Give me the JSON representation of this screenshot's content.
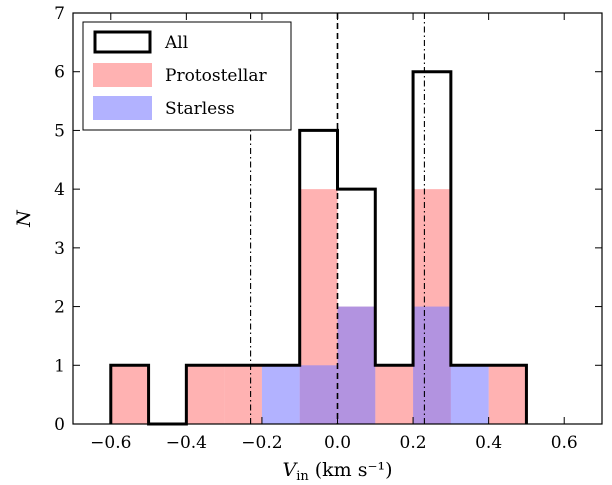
{
  "chart_data": {
    "type": "histogram",
    "xlabel": {
      "symbol": "V",
      "subscript": "in",
      "unit": "(km s⁻¹)"
    },
    "ylabel": "N",
    "xlim": [
      -0.7,
      0.7
    ],
    "ylim": [
      0,
      7
    ],
    "xticks": [
      -0.6,
      -0.4,
      -0.2,
      0.0,
      0.2,
      0.4,
      0.6
    ],
    "xtick_labels": [
      "−0.6",
      "−0.4",
      "−0.2",
      "0.0",
      "0.2",
      "0.4",
      "0.6"
    ],
    "yticks": [
      0,
      1,
      2,
      3,
      4,
      5,
      6,
      7
    ],
    "ytick_labels": [
      "0",
      "1",
      "2",
      "3",
      "4",
      "5",
      "6",
      "7"
    ],
    "bin_edges": [
      -0.6,
      -0.5,
      -0.4,
      -0.3,
      -0.2,
      -0.1,
      0.0,
      0.1,
      0.2,
      0.3,
      0.4,
      0.5
    ],
    "series": [
      {
        "name": "All",
        "style": "step",
        "color": "#000000",
        "counts": [
          1,
          0,
          1,
          1,
          1,
          5,
          4,
          1,
          6,
          1,
          1
        ]
      },
      {
        "name": "Protostellar",
        "style": "fill",
        "color": "#ff7f7f",
        "counts": [
          1,
          0,
          1,
          1,
          0,
          4,
          2,
          1,
          4,
          0,
          1
        ]
      },
      {
        "name": "Starless",
        "style": "fill",
        "color": "#7f7fff",
        "counts": [
          0,
          0,
          0,
          0,
          1,
          1,
          2,
          0,
          2,
          1,
          0
        ]
      }
    ],
    "vlines": [
      {
        "x": 0.0,
        "style": "dashed"
      },
      {
        "x": -0.23,
        "style": "dashdot"
      },
      {
        "x": 0.23,
        "style": "dashdot"
      }
    ],
    "legend_position": "top-left",
    "grid": false
  }
}
